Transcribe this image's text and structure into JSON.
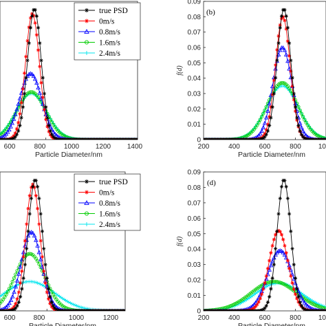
{
  "figure": {
    "panels": [
      "(b)",
      "(d)"
    ],
    "ylabel": "f(d)",
    "xlabel": "Particle Diameter/nm"
  },
  "chart_data": [
    {
      "type": "line",
      "panel": "a",
      "xlabel": "Particle Diameter/nm",
      "ylabel": "",
      "xlim": [
        500,
        1400
      ],
      "ylim": [
        0,
        0.09
      ],
      "xticks": [
        600,
        800,
        1000,
        1200,
        1400
      ],
      "xtick_labels": [
        "600",
        "800",
        "1000",
        "1200",
        "1400"
      ],
      "yticks": [],
      "legend": {
        "placement": "top-right"
      },
      "series": [
        {
          "name": "true PSD",
          "color": "#000000",
          "marker": "star",
          "mu": 725,
          "sigma": 45,
          "peak": 0.085
        },
        {
          "name": "0m/s",
          "color": "#ff0000",
          "marker": "star",
          "mu": 712,
          "sigma": 46,
          "peak": 0.082
        },
        {
          "name": "0.8m/s",
          "color": "#0000ff",
          "marker": "triangle",
          "mu": 700,
          "sigma": 72,
          "peak": 0.043
        },
        {
          "name": "1.6m/s",
          "color": "#00cc00",
          "marker": "circle",
          "mu": 705,
          "sigma": 95,
          "peak": 0.031
        },
        {
          "name": "2.4m/s",
          "color": "#00e5ee",
          "marker": "plus",
          "mu": 705,
          "sigma": 100,
          "peak": 0.03
        }
      ]
    },
    {
      "type": "line",
      "panel": "b",
      "xlabel": "Particle Diameter/nm",
      "ylabel": "f(d)",
      "xlim": [
        200,
        1000
      ],
      "ylim": [
        0,
        0.09
      ],
      "xticks": [
        200,
        400,
        600,
        800,
        1000
      ],
      "xtick_labels": [
        "200",
        "400",
        "600",
        "800",
        "1000"
      ],
      "yticks": [
        0,
        0.01,
        0.02,
        0.03,
        0.04,
        0.05,
        0.06,
        0.07,
        0.08,
        0.09
      ],
      "ytick_labels": [
        "0",
        "0.01",
        "0.02",
        "0.03",
        "0.04",
        "0.05",
        "0.06",
        "0.07",
        "0.08",
        "0.09"
      ],
      "series": [
        {
          "name": "true PSD",
          "color": "#000000",
          "marker": "star",
          "mu": 725,
          "sigma": 45,
          "peak": 0.085
        },
        {
          "name": "0m/s",
          "color": "#ff0000",
          "marker": "star",
          "mu": 718,
          "sigma": 48,
          "peak": 0.08
        },
        {
          "name": "0.8m/s",
          "color": "#0000ff",
          "marker": "triangle",
          "mu": 715,
          "sigma": 62,
          "peak": 0.06
        },
        {
          "name": "1.6m/s",
          "color": "#00cc00",
          "marker": "circle",
          "mu": 715,
          "sigma": 100,
          "peak": 0.037
        },
        {
          "name": "2.4m/s",
          "color": "#00e5ee",
          "marker": "plus",
          "mu": 715,
          "sigma": 105,
          "peak": 0.035
        }
      ]
    },
    {
      "type": "line",
      "panel": "c",
      "xlabel": "Particle Diameter/nm",
      "ylabel": "",
      "xlim": [
        500,
        1300
      ],
      "ylim": [
        0,
        0.09
      ],
      "xticks": [
        600,
        800,
        1000,
        1200
      ],
      "xtick_labels": [
        "600",
        "800",
        "1000",
        "1200"
      ],
      "yticks": [],
      "legend": {
        "placement": "top-right"
      },
      "series": [
        {
          "name": "true PSD",
          "color": "#000000",
          "marker": "star",
          "mu": 725,
          "sigma": 45,
          "peak": 0.085
        },
        {
          "name": "0m/s",
          "color": "#ff0000",
          "marker": "star",
          "mu": 710,
          "sigma": 46,
          "peak": 0.082
        },
        {
          "name": "0.8m/s",
          "color": "#0000ff",
          "marker": "triangle",
          "mu": 700,
          "sigma": 65,
          "peak": 0.051
        },
        {
          "name": "1.6m/s",
          "color": "#00cc00",
          "marker": "circle",
          "mu": 690,
          "sigma": 95,
          "peak": 0.037
        },
        {
          "name": "2.4m/s",
          "color": "#00e5ee",
          "marker": "plus",
          "mu": 690,
          "sigma": 160,
          "peak": 0.019
        }
      ]
    },
    {
      "type": "line",
      "panel": "d",
      "xlabel": "Particle Diameter/nm",
      "ylabel": "f(d)",
      "xlim": [
        200,
        1000
      ],
      "ylim": [
        0,
        0.09
      ],
      "xticks": [
        200,
        400,
        600,
        800,
        1000
      ],
      "xtick_labels": [
        "200",
        "400",
        "600",
        "800",
        "1000"
      ],
      "yticks": [
        0,
        0.01,
        0.02,
        0.03,
        0.04,
        0.05,
        0.06,
        0.07,
        0.08,
        0.09
      ],
      "ytick_labels": [
        "0",
        "0.01",
        "0.02",
        "0.03",
        "0.04",
        "0.05",
        "0.06",
        "0.07",
        "0.08",
        "0.09"
      ],
      "series": [
        {
          "name": "true PSD",
          "color": "#000000",
          "marker": "star",
          "mu": 725,
          "sigma": 45,
          "peak": 0.085
        },
        {
          "name": "0m/s",
          "color": "#ff0000",
          "marker": "star",
          "mu": 690,
          "sigma": 62,
          "peak": 0.052
        },
        {
          "name": "0.8m/s",
          "color": "#0000ff",
          "marker": "triangle",
          "mu": 700,
          "sigma": 80,
          "peak": 0.039
        },
        {
          "name": "1.6m/s",
          "color": "#00cc00",
          "marker": "circle",
          "mu": 660,
          "sigma": 150,
          "peak": 0.019
        },
        {
          "name": "2.4m/s",
          "color": "#00e5ee",
          "marker": "plus",
          "mu": 690,
          "sigma": 155,
          "peak": 0.018
        }
      ]
    }
  ]
}
